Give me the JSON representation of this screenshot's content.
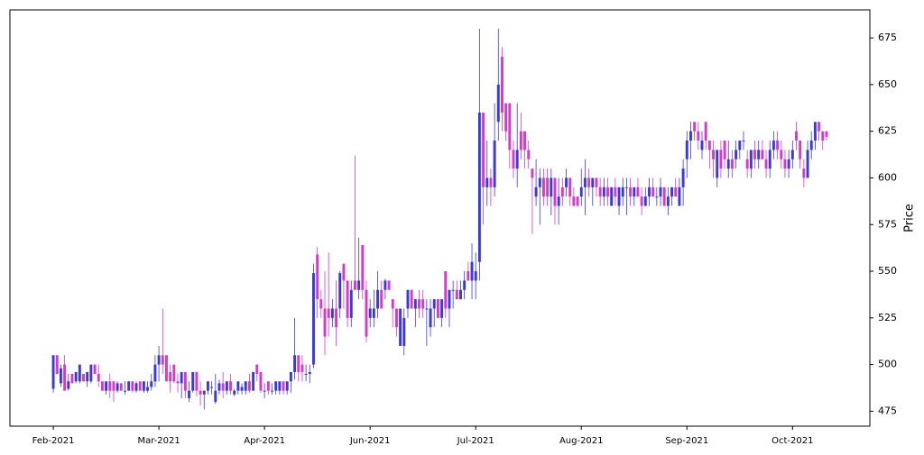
{
  "chart_data": {
    "type": "candlestick",
    "ylabel": "Price",
    "up_color": "#3a3ad8",
    "down_color": "#d63ac8",
    "xlim": [
      -11.5,
      216.5
    ],
    "xticks": [
      {
        "value": 0,
        "label": "Feb-2021"
      },
      {
        "value": 28,
        "label": "Mar-2021"
      },
      {
        "value": 56,
        "label": "Apr-2021"
      },
      {
        "value": 84,
        "label": "Jun-2021"
      },
      {
        "value": 112,
        "label": "Jul-2021"
      },
      {
        "value": 140,
        "label": "Aug-2021"
      },
      {
        "value": 168,
        "label": "Sep-2021"
      },
      {
        "value": 196,
        "label": "Oct-2021"
      }
    ],
    "ylim": [
      467,
      690
    ],
    "yticks": [
      475,
      500,
      525,
      550,
      575,
      600,
      625,
      650,
      675
    ],
    "candles": [
      [
        487,
        505,
        485,
        505
      ],
      [
        505,
        505,
        495,
        495
      ],
      [
        490,
        500,
        488,
        498
      ],
      [
        500,
        505,
        486,
        486
      ],
      [
        487,
        495,
        486,
        491
      ],
      [
        495,
        495,
        490,
        490
      ],
      [
        491,
        496,
        490,
        496
      ],
      [
        491,
        500,
        490,
        500
      ],
      [
        495,
        495,
        491,
        491
      ],
      [
        491,
        496,
        488,
        496
      ],
      [
        491,
        500,
        490,
        500
      ],
      [
        500,
        500,
        495,
        495
      ],
      [
        495,
        500,
        488,
        491
      ],
      [
        491,
        491,
        486,
        486
      ],
      [
        486,
        491,
        484,
        491
      ],
      [
        491,
        495,
        482,
        486
      ],
      [
        491,
        491,
        480,
        486
      ],
      [
        486,
        491,
        485,
        490
      ],
      [
        490,
        490,
        486,
        486
      ],
      [
        486,
        491,
        484,
        486
      ],
      [
        486,
        491,
        486,
        491
      ],
      [
        491,
        491,
        485,
        486
      ],
      [
        486,
        491,
        485,
        490
      ],
      [
        491,
        491,
        486,
        486
      ],
      [
        486,
        491,
        485,
        491
      ],
      [
        486,
        491,
        485,
        488
      ],
      [
        488,
        495,
        486,
        491
      ],
      [
        491,
        505,
        488,
        500
      ],
      [
        500,
        510,
        491,
        505
      ],
      [
        505,
        530,
        495,
        500
      ],
      [
        505,
        505,
        491,
        491
      ],
      [
        496,
        500,
        485,
        491
      ],
      [
        500,
        500,
        490,
        491
      ],
      [
        491,
        495,
        485,
        490
      ],
      [
        490,
        496,
        482,
        496
      ],
      [
        496,
        496,
        482,
        486
      ],
      [
        482,
        491,
        480,
        486
      ],
      [
        486,
        496,
        485,
        496
      ],
      [
        496,
        496,
        483,
        486
      ],
      [
        486,
        491,
        478,
        484
      ],
      [
        484,
        486,
        476,
        486
      ],
      [
        486,
        491,
        484,
        491
      ],
      [
        488,
        491,
        484,
        488
      ],
      [
        480,
        495,
        479,
        486
      ],
      [
        486,
        492,
        484,
        490
      ],
      [
        490,
        496,
        482,
        486
      ],
      [
        486,
        491,
        484,
        491
      ],
      [
        491,
        495,
        484,
        486
      ],
      [
        484,
        487,
        483,
        486
      ],
      [
        486,
        491,
        484,
        491
      ],
      [
        486,
        490,
        484,
        488
      ],
      [
        486,
        491,
        484,
        491
      ],
      [
        491,
        495,
        485,
        486
      ],
      [
        486,
        496,
        486,
        496
      ],
      [
        500,
        500,
        491,
        495
      ],
      [
        496,
        496,
        485,
        486
      ],
      [
        486,
        490,
        482,
        486
      ],
      [
        491,
        491,
        484,
        486
      ],
      [
        486,
        490,
        484,
        486
      ],
      [
        486,
        491,
        484,
        491
      ],
      [
        486,
        490,
        484,
        491
      ],
      [
        491,
        491,
        484,
        486
      ],
      [
        486,
        491,
        484,
        491
      ],
      [
        491,
        495,
        485,
        496
      ],
      [
        496,
        525,
        492,
        505
      ],
      [
        505,
        505,
        491,
        496
      ],
      [
        500,
        505,
        491,
        496
      ],
      [
        495,
        500,
        491,
        495
      ],
      [
        495,
        500,
        490,
        496
      ],
      [
        500,
        554,
        498,
        549
      ],
      [
        559,
        563,
        525,
        535
      ],
      [
        535,
        540,
        525,
        530
      ],
      [
        530,
        550,
        505,
        515
      ],
      [
        530,
        560,
        515,
        525
      ],
      [
        525,
        535,
        520,
        530
      ],
      [
        530,
        545,
        510,
        520
      ],
      [
        530,
        550,
        525,
        549
      ],
      [
        554,
        554,
        530,
        545
      ],
      [
        545,
        545,
        520,
        525
      ],
      [
        525,
        545,
        520,
        540
      ],
      [
        545,
        612,
        540,
        540
      ],
      [
        540,
        568,
        535,
        545
      ],
      [
        564,
        564,
        535,
        540
      ],
      [
        540,
        545,
        512,
        515
      ],
      [
        525,
        535,
        520,
        530
      ],
      [
        525,
        540,
        520,
        530
      ],
      [
        530,
        550,
        525,
        540
      ],
      [
        540,
        545,
        530,
        530
      ],
      [
        540,
        546,
        535,
        545
      ],
      [
        545,
        545,
        540,
        540
      ],
      [
        535,
        535,
        520,
        530
      ],
      [
        530,
        530,
        515,
        520
      ],
      [
        510,
        530,
        510,
        530
      ],
      [
        510,
        530,
        505,
        525
      ],
      [
        530,
        540,
        525,
        540
      ],
      [
        540,
        540,
        530,
        530
      ],
      [
        530,
        535,
        520,
        535
      ],
      [
        535,
        540,
        525,
        530
      ],
      [
        535,
        540,
        525,
        530
      ],
      [
        530,
        535,
        510,
        530
      ],
      [
        520,
        535,
        515,
        530
      ],
      [
        530,
        535,
        520,
        535
      ],
      [
        535,
        535,
        525,
        525
      ],
      [
        525,
        535,
        520,
        535
      ],
      [
        550,
        550,
        525,
        530
      ],
      [
        530,
        540,
        520,
        540
      ],
      [
        540,
        545,
        530,
        540
      ],
      [
        540,
        545,
        535,
        535
      ],
      [
        535,
        545,
        535,
        540
      ],
      [
        540,
        550,
        535,
        545
      ],
      [
        550,
        555,
        545,
        545
      ],
      [
        545,
        565,
        535,
        555
      ],
      [
        545,
        560,
        535,
        550
      ],
      [
        555,
        680,
        545,
        635
      ],
      [
        635,
        635,
        575,
        595
      ],
      [
        595,
        620,
        585,
        600
      ],
      [
        600,
        605,
        585,
        595
      ],
      [
        595,
        640,
        590,
        620
      ],
      [
        630,
        680,
        620,
        650
      ],
      [
        665,
        670,
        625,
        635
      ],
      [
        640,
        640,
        620,
        625
      ],
      [
        640,
        640,
        605,
        615
      ],
      [
        615,
        620,
        600,
        605
      ],
      [
        605,
        640,
        595,
        615
      ],
      [
        625,
        635,
        610,
        615
      ],
      [
        625,
        625,
        605,
        615
      ],
      [
        615,
        620,
        605,
        610
      ],
      [
        605,
        605,
        570,
        600
      ],
      [
        590,
        610,
        585,
        595
      ],
      [
        595,
        605,
        575,
        600
      ],
      [
        600,
        605,
        585,
        590
      ],
      [
        600,
        605,
        585,
        590
      ],
      [
        590,
        605,
        580,
        600
      ],
      [
        600,
        600,
        575,
        585
      ],
      [
        585,
        600,
        575,
        590
      ],
      [
        595,
        600,
        585,
        590
      ],
      [
        595,
        605,
        590,
        600
      ],
      [
        600,
        600,
        585,
        590
      ],
      [
        590,
        595,
        585,
        585
      ],
      [
        590,
        590,
        585,
        585
      ],
      [
        590,
        605,
        585,
        595
      ],
      [
        595,
        610,
        580,
        600
      ],
      [
        600,
        605,
        590,
        595
      ],
      [
        595,
        600,
        585,
        600
      ],
      [
        600,
        600,
        590,
        595
      ],
      [
        595,
        600,
        585,
        590
      ],
      [
        590,
        600,
        585,
        595
      ],
      [
        595,
        600,
        585,
        590
      ],
      [
        585,
        595,
        585,
        595
      ],
      [
        595,
        600,
        585,
        590
      ],
      [
        585,
        595,
        580,
        595
      ],
      [
        590,
        600,
        585,
        595
      ],
      [
        595,
        600,
        580,
        595
      ],
      [
        595,
        600,
        585,
        590
      ],
      [
        590,
        595,
        585,
        595
      ],
      [
        595,
        600,
        590,
        590
      ],
      [
        590,
        595,
        580,
        585
      ],
      [
        585,
        595,
        585,
        590
      ],
      [
        590,
        600,
        585,
        595
      ],
      [
        595,
        600,
        590,
        590
      ],
      [
        590,
        595,
        585,
        590
      ],
      [
        590,
        600,
        585,
        595
      ],
      [
        595,
        595,
        585,
        585
      ],
      [
        585,
        595,
        580,
        590
      ],
      [
        590,
        595,
        585,
        595
      ],
      [
        595,
        600,
        590,
        590
      ],
      [
        585,
        600,
        585,
        595
      ],
      [
        595,
        610,
        585,
        605
      ],
      [
        610,
        625,
        600,
        620
      ],
      [
        620,
        630,
        610,
        625
      ],
      [
        630,
        630,
        620,
        625
      ],
      [
        625,
        630,
        615,
        620
      ],
      [
        615,
        625,
        610,
        620
      ],
      [
        630,
        630,
        615,
        620
      ],
      [
        620,
        620,
        605,
        615
      ],
      [
        615,
        620,
        600,
        610
      ],
      [
        600,
        615,
        595,
        615
      ],
      [
        615,
        620,
        600,
        605
      ],
      [
        620,
        620,
        605,
        610
      ],
      [
        605,
        620,
        600,
        610
      ],
      [
        610,
        615,
        600,
        605
      ],
      [
        610,
        620,
        605,
        615
      ],
      [
        615,
        620,
        610,
        620
      ],
      [
        620,
        625,
        615,
        620
      ],
      [
        610,
        615,
        600,
        605
      ],
      [
        605,
        615,
        600,
        615
      ],
      [
        615,
        620,
        605,
        610
      ],
      [
        610,
        620,
        605,
        615
      ],
      [
        615,
        620,
        610,
        610
      ],
      [
        610,
        615,
        600,
        605
      ],
      [
        605,
        620,
        600,
        615
      ],
      [
        615,
        625,
        610,
        620
      ],
      [
        620,
        625,
        610,
        615
      ],
      [
        615,
        620,
        605,
        610
      ],
      [
        610,
        615,
        600,
        605
      ],
      [
        605,
        615,
        600,
        610
      ],
      [
        610,
        620,
        605,
        615
      ],
      [
        625,
        630,
        615,
        620
      ],
      [
        620,
        620,
        605,
        610
      ],
      [
        605,
        610,
        595,
        600
      ],
      [
        600,
        620,
        600,
        615
      ],
      [
        615,
        625,
        610,
        620
      ],
      [
        620,
        630,
        615,
        630
      ],
      [
        630,
        630,
        620,
        625
      ],
      [
        625,
        625,
        615,
        620
      ],
      [
        625,
        625,
        620,
        622
      ]
    ]
  }
}
